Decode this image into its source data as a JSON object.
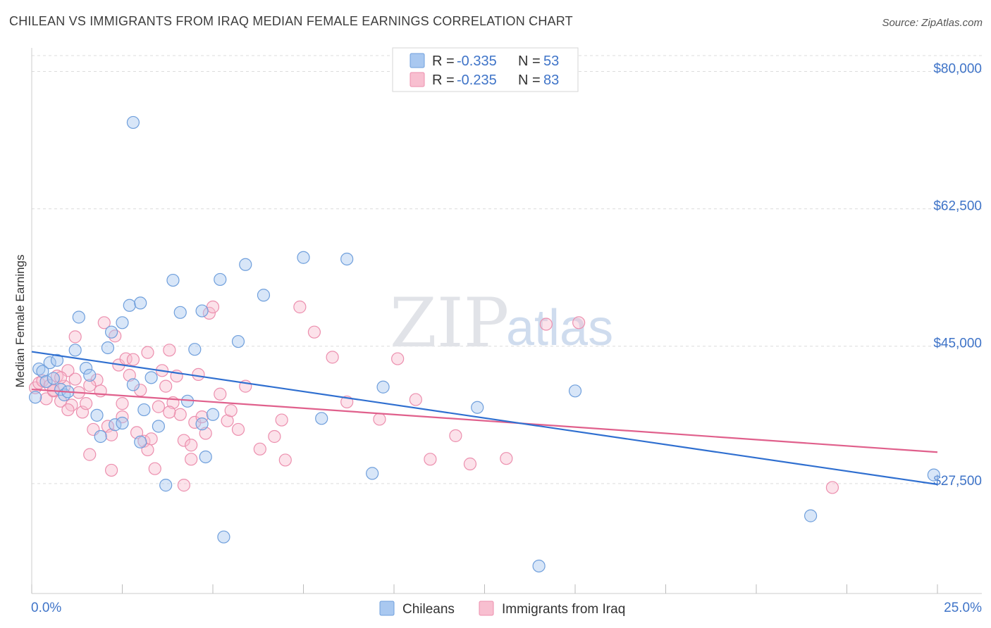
{
  "title": "CHILEAN VS IMMIGRANTS FROM IRAQ MEDIAN FEMALE EARNINGS CORRELATION CHART",
  "source": "Source: ZipAtlas.com",
  "watermark": {
    "zip": "ZIP",
    "atlas": "atlas"
  },
  "legend": {
    "series1": {
      "r_label": "R = ",
      "r_value": "-0.335",
      "n_label": "N = ",
      "n_value": "53"
    },
    "series2": {
      "r_label": "R = ",
      "r_value": "-0.235",
      "n_label": "N = ",
      "n_value": "83"
    }
  },
  "bottom_legend": {
    "series1": "Chileans",
    "series2": "Immigrants from Iraq"
  },
  "colors": {
    "chileans_fill": "#a9c8f0",
    "chileans_stroke": "#6f9fdc",
    "chileans_line": "#2f6fd0",
    "iraq_fill": "#f8bfd0",
    "iraq_stroke": "#ec8fae",
    "iraq_line": "#e0608c",
    "axis_text": "#3f74c8",
    "grid": "#dcdcdc"
  },
  "chart_data": {
    "type": "scatter",
    "title": "CHILEAN VS IMMIGRANTS FROM IRAQ MEDIAN FEMALE EARNINGS CORRELATION CHART",
    "xlabel": "",
    "ylabel": "Median Female Earnings",
    "xlim": [
      0,
      25
    ],
    "ylim": [
      13500,
      83000
    ],
    "x_tick_labels": [
      "0.0%",
      "25.0%"
    ],
    "y_ticks": [
      27500,
      45000,
      62500,
      80000
    ],
    "y_tick_labels": [
      "$27,500",
      "$45,000",
      "$62,500",
      "$80,000"
    ],
    "grid": "horizontal dashed",
    "legend_position": "top-center",
    "series": [
      {
        "name": "Chileans",
        "r": -0.335,
        "n": 53,
        "trend": {
          "x": [
            0,
            25
          ],
          "y": [
            44300,
            27400
          ]
        },
        "points": [
          [
            0.1,
            38500
          ],
          [
            0.2,
            42100
          ],
          [
            0.3,
            41800
          ],
          [
            0.4,
            40500
          ],
          [
            0.5,
            42900
          ],
          [
            0.6,
            40900
          ],
          [
            0.7,
            43200
          ],
          [
            0.8,
            39500
          ],
          [
            0.9,
            38800
          ],
          [
            1.0,
            39200
          ],
          [
            1.2,
            44500
          ],
          [
            1.3,
            48700
          ],
          [
            1.5,
            42200
          ],
          [
            1.6,
            41300
          ],
          [
            1.8,
            36200
          ],
          [
            1.9,
            33500
          ],
          [
            2.1,
            44800
          ],
          [
            2.2,
            46800
          ],
          [
            2.3,
            35000
          ],
          [
            2.5,
            35200
          ],
          [
            2.5,
            48000
          ],
          [
            2.7,
            50200
          ],
          [
            2.8,
            40100
          ],
          [
            3.0,
            50500
          ],
          [
            3.0,
            32800
          ],
          [
            3.1,
            36900
          ],
          [
            3.3,
            41000
          ],
          [
            3.5,
            34800
          ],
          [
            3.7,
            27300
          ],
          [
            3.9,
            53400
          ],
          [
            4.1,
            49300
          ],
          [
            4.3,
            38000
          ],
          [
            4.5,
            44600
          ],
          [
            4.7,
            35100
          ],
          [
            4.8,
            30900
          ],
          [
            5.0,
            36300
          ],
          [
            5.2,
            53500
          ],
          [
            5.3,
            20700
          ],
          [
            5.7,
            45600
          ],
          [
            5.9,
            55400
          ],
          [
            6.4,
            51500
          ],
          [
            7.5,
            56300
          ],
          [
            8.0,
            35800
          ],
          [
            8.7,
            56100
          ],
          [
            9.4,
            28800
          ],
          [
            9.7,
            39800
          ],
          [
            12.3,
            37200
          ],
          [
            14.0,
            17000
          ],
          [
            15.0,
            39300
          ],
          [
            21.5,
            23400
          ],
          [
            24.9,
            28600
          ],
          [
            2.8,
            73500
          ],
          [
            4.7,
            49500
          ]
        ]
      },
      {
        "name": "Immigrants from Iraq",
        "r": -0.235,
        "n": 83,
        "trend": {
          "x": [
            0,
            25
          ],
          "y": [
            39500,
            31500
          ]
        },
        "points": [
          [
            0.1,
            39700
          ],
          [
            0.2,
            40300
          ],
          [
            0.3,
            40600
          ],
          [
            0.4,
            38300
          ],
          [
            0.5,
            40000
          ],
          [
            0.6,
            39300
          ],
          [
            0.7,
            41200
          ],
          [
            0.8,
            38000
          ],
          [
            0.9,
            39900
          ],
          [
            1.0,
            41900
          ],
          [
            1.1,
            37500
          ],
          [
            1.2,
            40800
          ],
          [
            1.3,
            39100
          ],
          [
            1.4,
            36600
          ],
          [
            1.5,
            37700
          ],
          [
            1.2,
            46200
          ],
          [
            1.6,
            31200
          ],
          [
            1.7,
            34400
          ],
          [
            1.8,
            40700
          ],
          [
            1.9,
            39300
          ],
          [
            2.0,
            48000
          ],
          [
            2.1,
            34800
          ],
          [
            2.2,
            33700
          ],
          [
            2.2,
            29200
          ],
          [
            2.3,
            46300
          ],
          [
            2.4,
            42600
          ],
          [
            2.5,
            36000
          ],
          [
            2.6,
            43400
          ],
          [
            2.7,
            41300
          ],
          [
            2.8,
            43300
          ],
          [
            2.9,
            34000
          ],
          [
            3.0,
            39400
          ],
          [
            3.1,
            32900
          ],
          [
            3.2,
            44200
          ],
          [
            3.3,
            33200
          ],
          [
            3.4,
            29400
          ],
          [
            3.5,
            37300
          ],
          [
            3.6,
            41900
          ],
          [
            3.7,
            39900
          ],
          [
            3.8,
            44500
          ],
          [
            3.9,
            37800
          ],
          [
            4.0,
            41200
          ],
          [
            4.1,
            36300
          ],
          [
            4.2,
            33000
          ],
          [
            4.2,
            27300
          ],
          [
            4.4,
            32400
          ],
          [
            4.5,
            35300
          ],
          [
            4.6,
            41400
          ],
          [
            4.7,
            36000
          ],
          [
            4.8,
            33900
          ],
          [
            4.9,
            49200
          ],
          [
            5.0,
            50000
          ],
          [
            5.2,
            38900
          ],
          [
            5.4,
            35500
          ],
          [
            5.5,
            36800
          ],
          [
            5.7,
            34400
          ],
          [
            5.9,
            39900
          ],
          [
            6.3,
            31900
          ],
          [
            6.7,
            33500
          ],
          [
            7.0,
            30500
          ],
          [
            7.4,
            50000
          ],
          [
            7.8,
            46800
          ],
          [
            8.3,
            43600
          ],
          [
            8.7,
            37900
          ],
          [
            9.6,
            35700
          ],
          [
            10.1,
            43400
          ],
          [
            10.6,
            38200
          ],
          [
            11.0,
            30600
          ],
          [
            11.7,
            33600
          ],
          [
            12.1,
            30000
          ],
          [
            13.1,
            30700
          ],
          [
            14.2,
            47800
          ],
          [
            15.1,
            48000
          ],
          [
            22.1,
            27000
          ],
          [
            2.5,
            37700
          ],
          [
            0.8,
            41000
          ],
          [
            1.0,
            36900
          ],
          [
            3.8,
            36600
          ],
          [
            4.4,
            30600
          ],
          [
            6.9,
            35600
          ],
          [
            0.6,
            39400
          ],
          [
            1.6,
            40000
          ],
          [
            3.2,
            31800
          ]
        ]
      }
    ]
  }
}
